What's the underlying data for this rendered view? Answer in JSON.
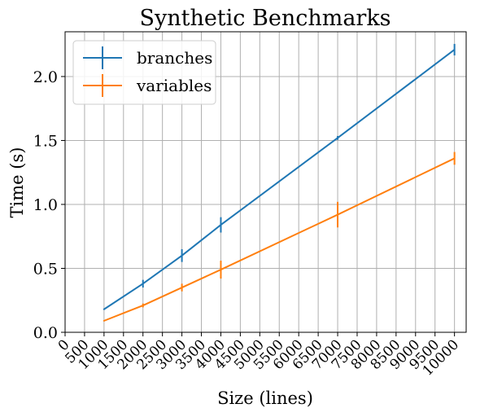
{
  "chart_data": {
    "type": "line",
    "title": "Synthetic Benchmarks",
    "xlabel": "Size (lines)",
    "ylabel": "Time (s)",
    "xlim": [
      0,
      10300
    ],
    "ylim": [
      0,
      2.35
    ],
    "xticks": [
      0,
      500,
      1000,
      1500,
      2000,
      2500,
      3000,
      3500,
      4000,
      4500,
      5000,
      5500,
      6000,
      6500,
      7000,
      7500,
      8000,
      8500,
      9000,
      9500,
      10000
    ],
    "xtick_labels": [
      "0",
      "500",
      "1000",
      "1500",
      "2000",
      "2500",
      "3000",
      "3500",
      "4000",
      "4500",
      "5000",
      "5500",
      "6000",
      "6500",
      "7000",
      "7500",
      "8000",
      "8500",
      "9000",
      "9500",
      "10000"
    ],
    "yticks": [
      0.0,
      0.5,
      1.0,
      1.5,
      2.0
    ],
    "ytick_labels": [
      "0.0",
      "0.5",
      "1.0",
      "1.5",
      "2.0"
    ],
    "grid": true,
    "legend_position": "top-left",
    "series": [
      {
        "name": "branches",
        "color": "#1f77b4",
        "x": [
          1000,
          2000,
          3000,
          4000,
          7000,
          10000
        ],
        "y": [
          0.18,
          0.38,
          0.6,
          0.84,
          1.52,
          2.21
        ],
        "err": [
          0.005,
          0.03,
          0.05,
          0.06,
          0.015,
          0.045
        ]
      },
      {
        "name": "variables",
        "color": "#ff7f0e",
        "x": [
          1000,
          2000,
          3000,
          4000,
          7000,
          10000
        ],
        "y": [
          0.09,
          0.21,
          0.35,
          0.49,
          0.92,
          1.36
        ],
        "err": [
          0.005,
          0.015,
          0.03,
          0.07,
          0.1,
          0.05
        ]
      }
    ]
  }
}
